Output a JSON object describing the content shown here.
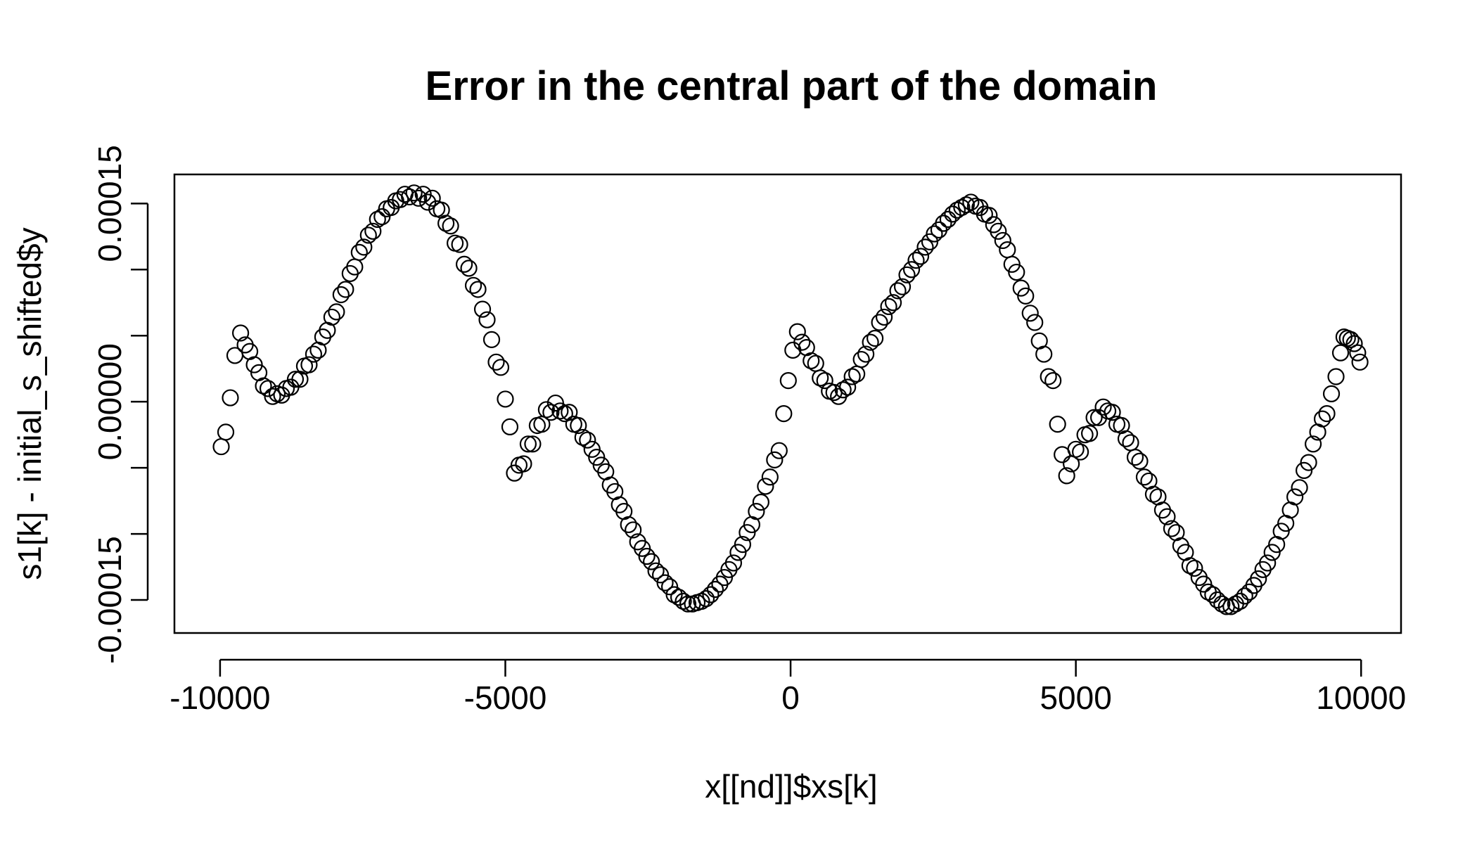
{
  "chart_data": {
    "type": "scatter",
    "title": "Error in the central part of the domain",
    "xlabel": "x[[nd]]$xs[k]",
    "ylabel": "s1[k] - initial_s_shifted$y",
    "xlim": [
      -10800,
      10700
    ],
    "ylim": [
      -0.000175,
      0.000172
    ],
    "x_ticks": [
      -10000,
      -5000,
      0,
      5000,
      10000
    ],
    "x_tick_labels": [
      "-10000",
      "-5000",
      "0",
      "5000",
      "10000"
    ],
    "y_ticks": [
      -0.00015,
      -0.0001,
      -5e-05,
      0,
      5e-05,
      0.0001,
      0.00015
    ],
    "y_tick_labels": [
      "-0.00015",
      "",
      "",
      "0.00000",
      "",
      "",
      "0.00015"
    ],
    "grid": false,
    "marker": "open-circle",
    "series": [
      {
        "points": [
          [
            -9980,
            -3.4e-05
          ],
          [
            -9900,
            -2.3e-05
          ],
          [
            -9820,
            3e-06
          ],
          [
            -9740,
            3.5e-05
          ],
          [
            -9640,
            5.2e-05
          ],
          [
            -9560,
            4.3e-05
          ],
          [
            -9480,
            3.8e-05
          ],
          [
            -9400,
            2.8e-05
          ],
          [
            -9320,
            2.2e-05
          ],
          [
            -9240,
            1.2e-05
          ],
          [
            -9160,
            1e-05
          ],
          [
            -9080,
            4e-06
          ],
          [
            -9000,
            6e-06
          ],
          [
            -8920,
            5e-06
          ],
          [
            -8840,
            1e-05
          ],
          [
            -8760,
            1.1e-05
          ],
          [
            -8680,
            1.7e-05
          ],
          [
            -8600,
            1.7e-05
          ],
          [
            -8520,
            2.7e-05
          ],
          [
            -8440,
            2.8e-05
          ],
          [
            -8360,
            3.6e-05
          ],
          [
            -8280,
            3.9e-05
          ],
          [
            -8200,
            4.9e-05
          ],
          [
            -8120,
            5.4e-05
          ],
          [
            -8040,
            6.4e-05
          ],
          [
            -7960,
            6.8e-05
          ],
          [
            -7880,
            8.1e-05
          ],
          [
            -7800,
            8.5e-05
          ],
          [
            -7720,
            9.7e-05
          ],
          [
            -7640,
            0.000102
          ],
          [
            -7560,
            0.000113
          ],
          [
            -7480,
            0.000117
          ],
          [
            -7400,
            0.000126
          ],
          [
            -7320,
            0.000129
          ],
          [
            -7240,
            0.000138
          ],
          [
            -7160,
            0.00014
          ],
          [
            -7080,
            0.000146
          ],
          [
            -7000,
            0.000147
          ],
          [
            -6920,
            0.000152
          ],
          [
            -6840,
            0.000153
          ],
          [
            -6760,
            0.000157
          ],
          [
            -6680,
            0.000155
          ],
          [
            -6600,
            0.000158
          ],
          [
            -6520,
            0.000154
          ],
          [
            -6440,
            0.000157
          ],
          [
            -6360,
            0.000151
          ],
          [
            -6280,
            0.000154
          ],
          [
            -6200,
            0.000146
          ],
          [
            -6120,
            0.000145
          ],
          [
            -6040,
            0.000135
          ],
          [
            -5960,
            0.000133
          ],
          [
            -5880,
            0.00012
          ],
          [
            -5800,
            0.000119
          ],
          [
            -5720,
            0.000104
          ],
          [
            -5640,
            0.000101
          ],
          [
            -5560,
            8.8e-05
          ],
          [
            -5480,
            8.5e-05
          ],
          [
            -5400,
            7e-05
          ],
          [
            -5320,
            6.2e-05
          ],
          [
            -5240,
            4.7e-05
          ],
          [
            -5160,
            3e-05
          ],
          [
            -5080,
            2.6e-05
          ],
          [
            -5000,
            2e-06
          ],
          [
            -4920,
            -1.9e-05
          ],
          [
            -4840,
            -5.4e-05
          ],
          [
            -4760,
            -4.8e-05
          ],
          [
            -4680,
            -4.7e-05
          ],
          [
            -4600,
            -3.2e-05
          ],
          [
            -4520,
            -3.2e-05
          ],
          [
            -4440,
            -1.8e-05
          ],
          [
            -4360,
            -1.7e-05
          ],
          [
            -4280,
            -6e-06
          ],
          [
            -4200,
            -8e-06
          ],
          [
            -4120,
            -1e-06
          ],
          [
            -4040,
            -7e-06
          ],
          [
            -3960,
            -9e-06
          ],
          [
            -3880,
            -8e-06
          ],
          [
            -3800,
            -1.7e-05
          ],
          [
            -3720,
            -1.8e-05
          ],
          [
            -3640,
            -2.7e-05
          ],
          [
            -3560,
            -2.9e-05
          ],
          [
            -3480,
            -3.6e-05
          ],
          [
            -3400,
            -4.2e-05
          ],
          [
            -3320,
            -4.8e-05
          ],
          [
            -3240,
            -5.3e-05
          ],
          [
            -3160,
            -6.3e-05
          ],
          [
            -3080,
            -6.8e-05
          ],
          [
            -3000,
            -7.8e-05
          ],
          [
            -2920,
            -8.3e-05
          ],
          [
            -2840,
            -9.3e-05
          ],
          [
            -2760,
            -9.7e-05
          ],
          [
            -2680,
            -0.000106
          ],
          [
            -2600,
            -0.000111
          ],
          [
            -2520,
            -0.000117
          ],
          [
            -2440,
            -0.000121
          ],
          [
            -2360,
            -0.000128
          ],
          [
            -2280,
            -0.000131
          ],
          [
            -2200,
            -0.000137
          ],
          [
            -2120,
            -0.00014
          ],
          [
            -2040,
            -0.000146
          ],
          [
            -1960,
            -0.000148
          ],
          [
            -1880,
            -0.000151
          ],
          [
            -1800,
            -0.000153
          ],
          [
            -1720,
            -0.000153
          ],
          [
            -1640,
            -0.000152
          ],
          [
            -1560,
            -0.000151
          ],
          [
            -1480,
            -0.000149
          ],
          [
            -1400,
            -0.000146
          ],
          [
            -1320,
            -0.000142
          ],
          [
            -1240,
            -0.000138
          ],
          [
            -1160,
            -0.000133
          ],
          [
            -1080,
            -0.000127
          ],
          [
            -1000,
            -0.000122
          ],
          [
            -920,
            -0.000114
          ],
          [
            -840,
            -0.000108
          ],
          [
            -760,
            -9.9e-05
          ],
          [
            -680,
            -9.3e-05
          ],
          [
            -600,
            -8.3e-05
          ],
          [
            -520,
            -7.6e-05
          ],
          [
            -440,
            -6.4e-05
          ],
          [
            -360,
            -5.7e-05
          ],
          [
            -280,
            -4.4e-05
          ],
          [
            -200,
            -3.7e-05
          ],
          [
            -120,
            -9e-06
          ],
          [
            -40,
            1.6e-05
          ],
          [
            40,
            3.9e-05
          ],
          [
            120,
            5.3e-05
          ],
          [
            200,
            4.5e-05
          ],
          [
            280,
            4.1e-05
          ],
          [
            360,
            3.1e-05
          ],
          [
            440,
            2.9e-05
          ],
          [
            520,
            1.8e-05
          ],
          [
            600,
            1.6e-05
          ],
          [
            680,
            8e-06
          ],
          [
            760,
            7e-06
          ],
          [
            840,
            4e-06
          ],
          [
            920,
            9e-06
          ],
          [
            1000,
            1.1e-05
          ],
          [
            1080,
            1.9e-05
          ],
          [
            1160,
            2.1e-05
          ],
          [
            1240,
            3.2e-05
          ],
          [
            1320,
            3.6e-05
          ],
          [
            1400,
            4.5e-05
          ],
          [
            1480,
            4.8e-05
          ],
          [
            1560,
            6e-05
          ],
          [
            1640,
            6.4e-05
          ],
          [
            1720,
            7.2e-05
          ],
          [
            1800,
            7.5e-05
          ],
          [
            1880,
            8.4e-05
          ],
          [
            1960,
            8.7e-05
          ],
          [
            2040,
            9.6e-05
          ],
          [
            2120,
            0.0001
          ],
          [
            2200,
            0.000107
          ],
          [
            2280,
            0.00011
          ],
          [
            2360,
            0.000117
          ],
          [
            2440,
            0.000121
          ],
          [
            2520,
            0.000127
          ],
          [
            2600,
            0.00013
          ],
          [
            2680,
            0.000135
          ],
          [
            2760,
            0.000138
          ],
          [
            2840,
            0.000142
          ],
          [
            2920,
            0.000145
          ],
          [
            3000,
            0.000147
          ],
          [
            3080,
            0.000149
          ],
          [
            3160,
            0.000151
          ],
          [
            3240,
            0.000148
          ],
          [
            3320,
            0.000147
          ],
          [
            3400,
            0.000142
          ],
          [
            3480,
            0.000141
          ],
          [
            3560,
            0.000134
          ],
          [
            3640,
            0.000129
          ],
          [
            3720,
            0.000122
          ],
          [
            3800,
            0.000115
          ],
          [
            3880,
            0.000104
          ],
          [
            3960,
            9.8e-05
          ],
          [
            4040,
            8.6e-05
          ],
          [
            4120,
            8e-05
          ],
          [
            4200,
            6.7e-05
          ],
          [
            4280,
            6e-05
          ],
          [
            4360,
            4.6e-05
          ],
          [
            4440,
            3.6e-05
          ],
          [
            4520,
            1.9e-05
          ],
          [
            4600,
            1.6e-05
          ],
          [
            4680,
            -1.7e-05
          ],
          [
            4760,
            -4e-05
          ],
          [
            4840,
            -5.6e-05
          ],
          [
            4920,
            -4.7e-05
          ],
          [
            5000,
            -3.6e-05
          ],
          [
            5080,
            -3.8e-05
          ],
          [
            5160,
            -2.5e-05
          ],
          [
            5240,
            -2.4e-05
          ],
          [
            5320,
            -1.2e-05
          ],
          [
            5400,
            -1.2e-05
          ],
          [
            5480,
            -4e-06
          ],
          [
            5560,
            -7e-06
          ],
          [
            5640,
            -8e-06
          ],
          [
            5720,
            -1.7e-05
          ],
          [
            5800,
            -1.8e-05
          ],
          [
            5880,
            -2.8e-05
          ],
          [
            5960,
            -3.1e-05
          ],
          [
            6040,
            -4.2e-05
          ],
          [
            6120,
            -4.5e-05
          ],
          [
            6200,
            -5.7e-05
          ],
          [
            6280,
            -6e-05
          ],
          [
            6360,
            -7e-05
          ],
          [
            6440,
            -7.2e-05
          ],
          [
            6520,
            -8.2e-05
          ],
          [
            6600,
            -8.7e-05
          ],
          [
            6680,
            -9.6e-05
          ],
          [
            6760,
            -9.9e-05
          ],
          [
            6840,
            -0.000109
          ],
          [
            6920,
            -0.000114
          ],
          [
            7000,
            -0.000124
          ],
          [
            7080,
            -0.000126
          ],
          [
            7160,
            -0.000133
          ],
          [
            7240,
            -0.000138
          ],
          [
            7320,
            -0.000144
          ],
          [
            7400,
            -0.000146
          ],
          [
            7480,
            -0.00015
          ],
          [
            7560,
            -0.000153
          ],
          [
            7640,
            -0.000155
          ],
          [
            7720,
            -0.000155
          ],
          [
            7800,
            -0.000153
          ],
          [
            7880,
            -0.000151
          ],
          [
            7960,
            -0.000147
          ],
          [
            8040,
            -0.000144
          ],
          [
            8120,
            -0.000139
          ],
          [
            8200,
            -0.000134
          ],
          [
            8280,
            -0.000127
          ],
          [
            8360,
            -0.000122
          ],
          [
            8440,
            -0.000114
          ],
          [
            8520,
            -0.000108
          ],
          [
            8600,
            -9.8e-05
          ],
          [
            8680,
            -9.2e-05
          ],
          [
            8760,
            -8.2e-05
          ],
          [
            8840,
            -7.2e-05
          ],
          [
            8920,
            -6.5e-05
          ],
          [
            9000,
            -5.2e-05
          ],
          [
            9080,
            -4.6e-05
          ],
          [
            9160,
            -3.2e-05
          ],
          [
            9240,
            -2.3e-05
          ],
          [
            9320,
            -1.3e-05
          ],
          [
            9400,
            -9e-06
          ],
          [
            9480,
            6e-06
          ],
          [
            9560,
            1.9e-05
          ],
          [
            9640,
            3.7e-05
          ],
          [
            9700,
            4.9e-05
          ],
          [
            9760,
            4.8e-05
          ],
          [
            9820,
            4.7e-05
          ],
          [
            9880,
            4.4e-05
          ],
          [
            9940,
            3.7e-05
          ],
          [
            9980,
            3e-05
          ]
        ]
      }
    ]
  }
}
